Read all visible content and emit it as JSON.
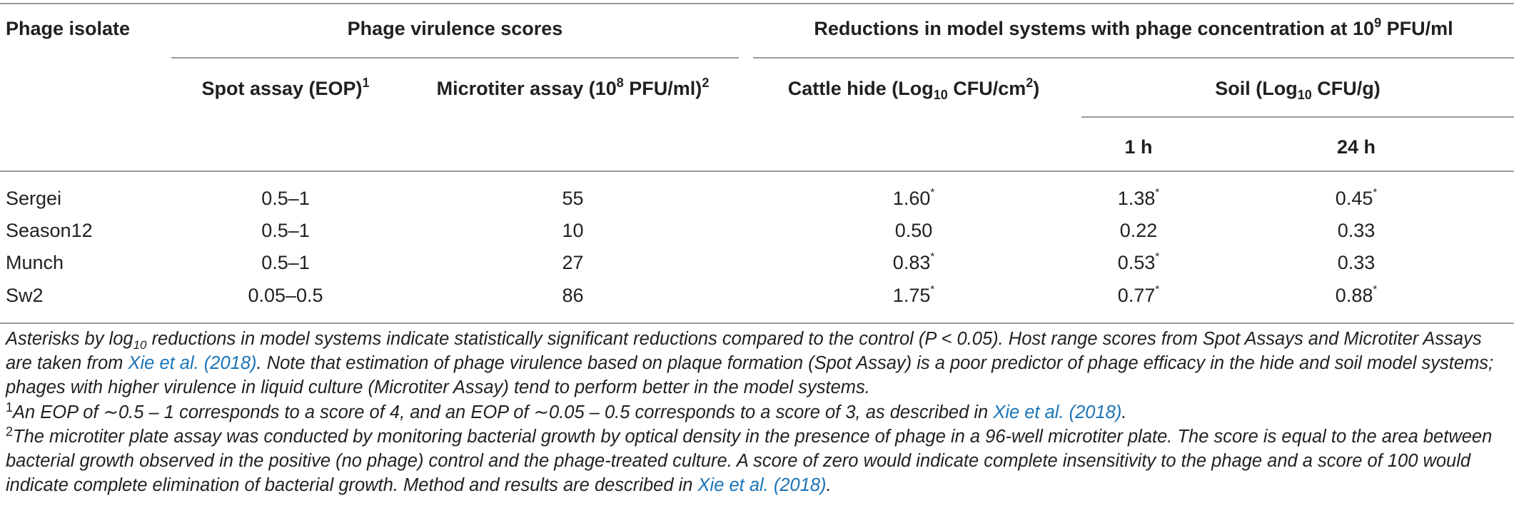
{
  "table": {
    "headers": {
      "phage_isolate": "Phage isolate",
      "virulence_group": "Phage virulence scores",
      "reductions_group_pre": "Reductions in model systems with phage concentration at 10",
      "reductions_group_exp": "9",
      "reductions_group_post": " PFU/ml",
      "spot_pre": "Spot assay (EOP)",
      "spot_sup": "1",
      "micro_pre": "Microtiter assay (10",
      "micro_exp": "8",
      "micro_post": " PFU/ml)",
      "micro_sup": "2",
      "hide_pre": "Cattle hide (Log",
      "hide_sub": "10",
      "hide_mid": " CFU/cm",
      "hide_sup": "2",
      "hide_post": ")",
      "soil_pre": "Soil (Log",
      "soil_sub": "10",
      "soil_post": " CFU/g)",
      "h1": "1 h",
      "h24": "24 h"
    },
    "rows": [
      {
        "phage": "Sergei",
        "spot": "0.5–1",
        "micro": "55",
        "hide": "1.60",
        "hide_star": "*",
        "s1": "1.38",
        "s1_star": "*",
        "s24": "0.45",
        "s24_star": "*"
      },
      {
        "phage": "Season12",
        "spot": "0.5–1",
        "micro": "10",
        "hide": "0.50",
        "hide_star": "",
        "s1": "0.22",
        "s1_star": "",
        "s24": "0.33",
        "s24_star": ""
      },
      {
        "phage": "Munch",
        "spot": "0.5–1",
        "micro": "27",
        "hide": "0.83",
        "hide_star": "*",
        "s1": "0.53",
        "s1_star": "*",
        "s24": "0.33",
        "s24_star": ""
      },
      {
        "phage": "Sw2",
        "spot": "0.05–0.5",
        "micro": "86",
        "hide": "1.75",
        "hide_star": "*",
        "s1": "0.77",
        "s1_star": "*",
        "s24": "0.88",
        "s24_star": "*"
      }
    ]
  },
  "notes": {
    "main_a": "Asterisks by log",
    "main_sub": "10",
    "main_b": " reductions in model systems indicate statistically significant reductions compared to the control (P < 0.05). Host range scores from Spot Assays and Microtiter Assays are taken from ",
    "main_cite": "Xie et al. (2018)",
    "main_c": ". Note that estimation of phage virulence based on plaque formation (Spot Assay) is a poor predictor of phage efficacy in the hide and soil model systems; phages with higher virulence in liquid culture (Microtiter Assay) tend to perform better in the model systems.",
    "fn1_mark": "1",
    "fn1_text": "An EOP of ∼0.5 – 1 corresponds to a score of 4, and an EOP of ∼0.05 – 0.5 corresponds to a score of 3, as described in ",
    "fn1_cite": "Xie et al. (2018)",
    "fn1_end": ".",
    "fn2_mark": "2",
    "fn2_text": "The microtiter plate assay was conducted by monitoring bacterial growth by optical density in the presence of phage in a 96-well microtiter plate. The score is equal to the area between bacterial growth observed in the positive (no phage) control and the phage-treated culture. A score of zero would indicate complete insensitivity to the phage and a score of 100 would indicate complete elimination of bacterial growth. Method and results are described in ",
    "fn2_cite": "Xie et al. (2018)",
    "fn2_end": "."
  }
}
